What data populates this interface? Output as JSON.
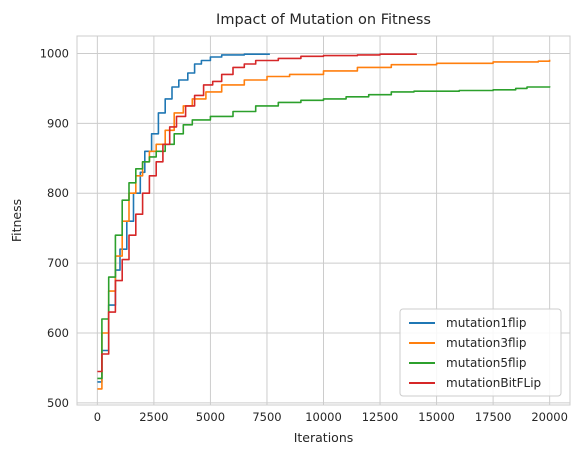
{
  "chart_data": {
    "type": "line",
    "title": "Impact of Mutation on Fitness",
    "xlabel": "Iterations",
    "ylabel": "Fitness",
    "xlim": [
      -900,
      20900
    ],
    "ylim": [
      497,
      1025
    ],
    "xticks": [
      0,
      2500,
      5000,
      7500,
      10000,
      12500,
      15000,
      17500,
      20000
    ],
    "yticks": [
      500,
      600,
      700,
      800,
      900,
      1000
    ],
    "grid": true,
    "legend_position": "bottom-right",
    "series": [
      {
        "name": "mutation1flip",
        "color": "#1f77b4",
        "points": [
          [
            0,
            530
          ],
          [
            200,
            575
          ],
          [
            500,
            640
          ],
          [
            800,
            690
          ],
          [
            1000,
            720
          ],
          [
            1300,
            760
          ],
          [
            1600,
            800
          ],
          [
            1900,
            830
          ],
          [
            2100,
            860
          ],
          [
            2400,
            885
          ],
          [
            2700,
            915
          ],
          [
            3000,
            935
          ],
          [
            3300,
            952
          ],
          [
            3600,
            962
          ],
          [
            4000,
            972
          ],
          [
            4300,
            985
          ],
          [
            4600,
            990
          ],
          [
            5000,
            995
          ],
          [
            5500,
            998
          ],
          [
            6500,
            999
          ],
          [
            7600,
            1000
          ]
        ]
      },
      {
        "name": "mutation3flip",
        "color": "#ff7f0e",
        "points": [
          [
            0,
            520
          ],
          [
            200,
            600
          ],
          [
            500,
            660
          ],
          [
            800,
            710
          ],
          [
            1100,
            760
          ],
          [
            1400,
            800
          ],
          [
            1700,
            825
          ],
          [
            2000,
            845
          ],
          [
            2300,
            860
          ],
          [
            2600,
            870
          ],
          [
            3000,
            890
          ],
          [
            3400,
            915
          ],
          [
            3800,
            925
          ],
          [
            4200,
            935
          ],
          [
            4800,
            945
          ],
          [
            5500,
            955
          ],
          [
            6500,
            962
          ],
          [
            7500,
            967
          ],
          [
            8500,
            970
          ],
          [
            10000,
            975
          ],
          [
            11500,
            980
          ],
          [
            13000,
            984
          ],
          [
            15000,
            986
          ],
          [
            17500,
            988
          ],
          [
            19500,
            989
          ],
          [
            20000,
            991
          ]
        ]
      },
      {
        "name": "mutation5flip",
        "color": "#2ca02c",
        "points": [
          [
            0,
            535
          ],
          [
            200,
            620
          ],
          [
            500,
            680
          ],
          [
            800,
            740
          ],
          [
            1100,
            790
          ],
          [
            1400,
            815
          ],
          [
            1700,
            835
          ],
          [
            2000,
            845
          ],
          [
            2300,
            852
          ],
          [
            2600,
            860
          ],
          [
            3000,
            870
          ],
          [
            3400,
            885
          ],
          [
            3800,
            898
          ],
          [
            4200,
            905
          ],
          [
            5000,
            910
          ],
          [
            6000,
            917
          ],
          [
            7000,
            925
          ],
          [
            8000,
            930
          ],
          [
            9000,
            933
          ],
          [
            10000,
            935
          ],
          [
            11000,
            938
          ],
          [
            12000,
            941
          ],
          [
            13000,
            945
          ],
          [
            14000,
            946
          ],
          [
            16000,
            947
          ],
          [
            17500,
            948
          ],
          [
            18500,
            950
          ],
          [
            19000,
            952
          ],
          [
            20000,
            953
          ]
        ]
      },
      {
        "name": "mutationBitFLip",
        "color": "#d62728",
        "points": [
          [
            0,
            545
          ],
          [
            200,
            570
          ],
          [
            500,
            630
          ],
          [
            800,
            675
          ],
          [
            1100,
            705
          ],
          [
            1400,
            740
          ],
          [
            1700,
            770
          ],
          [
            2000,
            800
          ],
          [
            2300,
            825
          ],
          [
            2600,
            845
          ],
          [
            2900,
            870
          ],
          [
            3200,
            895
          ],
          [
            3500,
            910
          ],
          [
            3900,
            925
          ],
          [
            4300,
            940
          ],
          [
            4700,
            955
          ],
          [
            5100,
            960
          ],
          [
            5500,
            970
          ],
          [
            6000,
            980
          ],
          [
            6500,
            985
          ],
          [
            7000,
            990
          ],
          [
            8000,
            993
          ],
          [
            9000,
            996
          ],
          [
            10000,
            997
          ],
          [
            11500,
            998
          ],
          [
            12500,
            999
          ],
          [
            14100,
            1000
          ]
        ]
      }
    ]
  }
}
